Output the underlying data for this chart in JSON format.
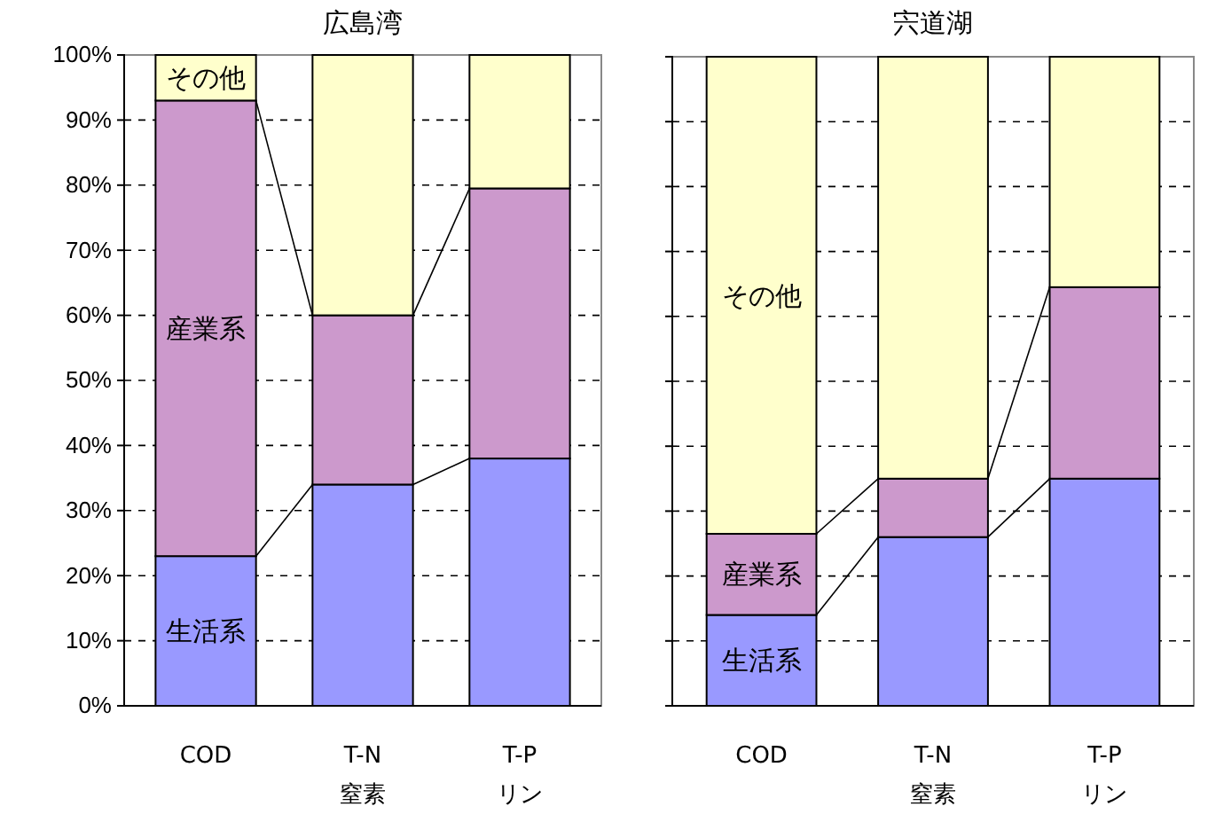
{
  "chart_data": [
    {
      "type": "bar",
      "title": "広島湾",
      "categories": [
        "COD",
        "T-N\n窒素",
        "T-P\nリン"
      ],
      "stacked": true,
      "ylim": [
        0,
        100
      ],
      "yticks": [
        {
          "value": 0,
          "label": "0%"
        },
        {
          "value": 10,
          "label": "10%"
        },
        {
          "value": 20,
          "label": "20%"
        },
        {
          "value": 30,
          "label": "30%"
        },
        {
          "value": 40,
          "label": "40%"
        },
        {
          "value": 50,
          "label": "50%"
        },
        {
          "value": 60,
          "label": "60%"
        },
        {
          "value": 70,
          "label": "70%"
        },
        {
          "value": 80,
          "label": "80%"
        },
        {
          "value": 90,
          "label": "90%"
        },
        {
          "value": 100,
          "label": "100%"
        }
      ],
      "grid": "y",
      "legend": false,
      "series": [
        {
          "name": "生活系",
          "color": "#9999ff",
          "values": [
            23,
            34,
            38
          ]
        },
        {
          "name": "産業系",
          "color": "#cc99cc",
          "values": [
            70,
            26,
            41.5
          ]
        },
        {
          "name": "その他",
          "color": "#ffffcc",
          "values": [
            7,
            40,
            20.5
          ]
        }
      ]
    },
    {
      "type": "bar",
      "title": "宍道湖",
      "categories": [
        "COD",
        "T-N\n窒素",
        "T-P\nリン"
      ],
      "stacked": true,
      "ylim": [
        0,
        100
      ],
      "yticks": [
        0,
        10,
        20,
        30,
        40,
        50,
        60,
        70,
        80,
        90,
        100
      ],
      "grid": "y",
      "legend": false,
      "tick_labels": "x",
      "series": [
        {
          "name": "生活系",
          "color": "#9999ff",
          "values": [
            14,
            26,
            35
          ]
        },
        {
          "name": "産業系",
          "color": "#cc99cc",
          "values": [
            12.5,
            9,
            29.5
          ]
        },
        {
          "name": "その他",
          "color": "#ffffcc",
          "values": [
            73.5,
            65,
            35.5
          ]
        }
      ]
    }
  ]
}
